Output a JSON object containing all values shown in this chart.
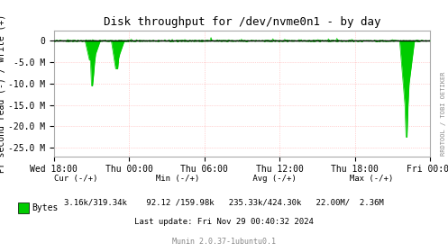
{
  "title": "Disk throughput for /dev/nvme0n1 - by day",
  "ylabel": "Pr second read (-) / write (+)",
  "background_color": "#ffffff",
  "plot_bg_color": "#ffffff",
  "grid_color": "#ff9999",
  "line_color": "#00cc00",
  "fill_color": "#00cc00",
  "border_color": "#aaaaaa",
  "ylim": [
    -27000000,
    2500000
  ],
  "yticks": [
    0,
    -5000000,
    -10000000,
    -15000000,
    -20000000,
    -25000000
  ],
  "ytick_labels": [
    "0",
    "-5.0 M",
    "-10.0 M",
    "-15.0 M",
    "-20.0 M",
    "-25.0 M"
  ],
  "xtick_labels": [
    "Wed 18:00",
    "Thu 00:00",
    "Thu 06:00",
    "Thu 12:00",
    "Thu 18:00",
    "Fri 00:00"
  ],
  "footer_line1": "       Cur (-/+)           Min (-/+)          Avg (-/+)          Max (-/+)",
  "footer_line2": "Bytes  3.16k/319.34k    92.12 /159.98k   235.33k/424.30k   22.00M/  2.36M",
  "footer_line3": "             Last update: Fri Nov 29 00:40:32 2024",
  "munin_version": "Munin 2.0.37-1ubuntu0.1",
  "right_label": "RRDTOOL / TOBI OETIKER",
  "legend_color": "#00cc00",
  "legend_label": "Bytes"
}
